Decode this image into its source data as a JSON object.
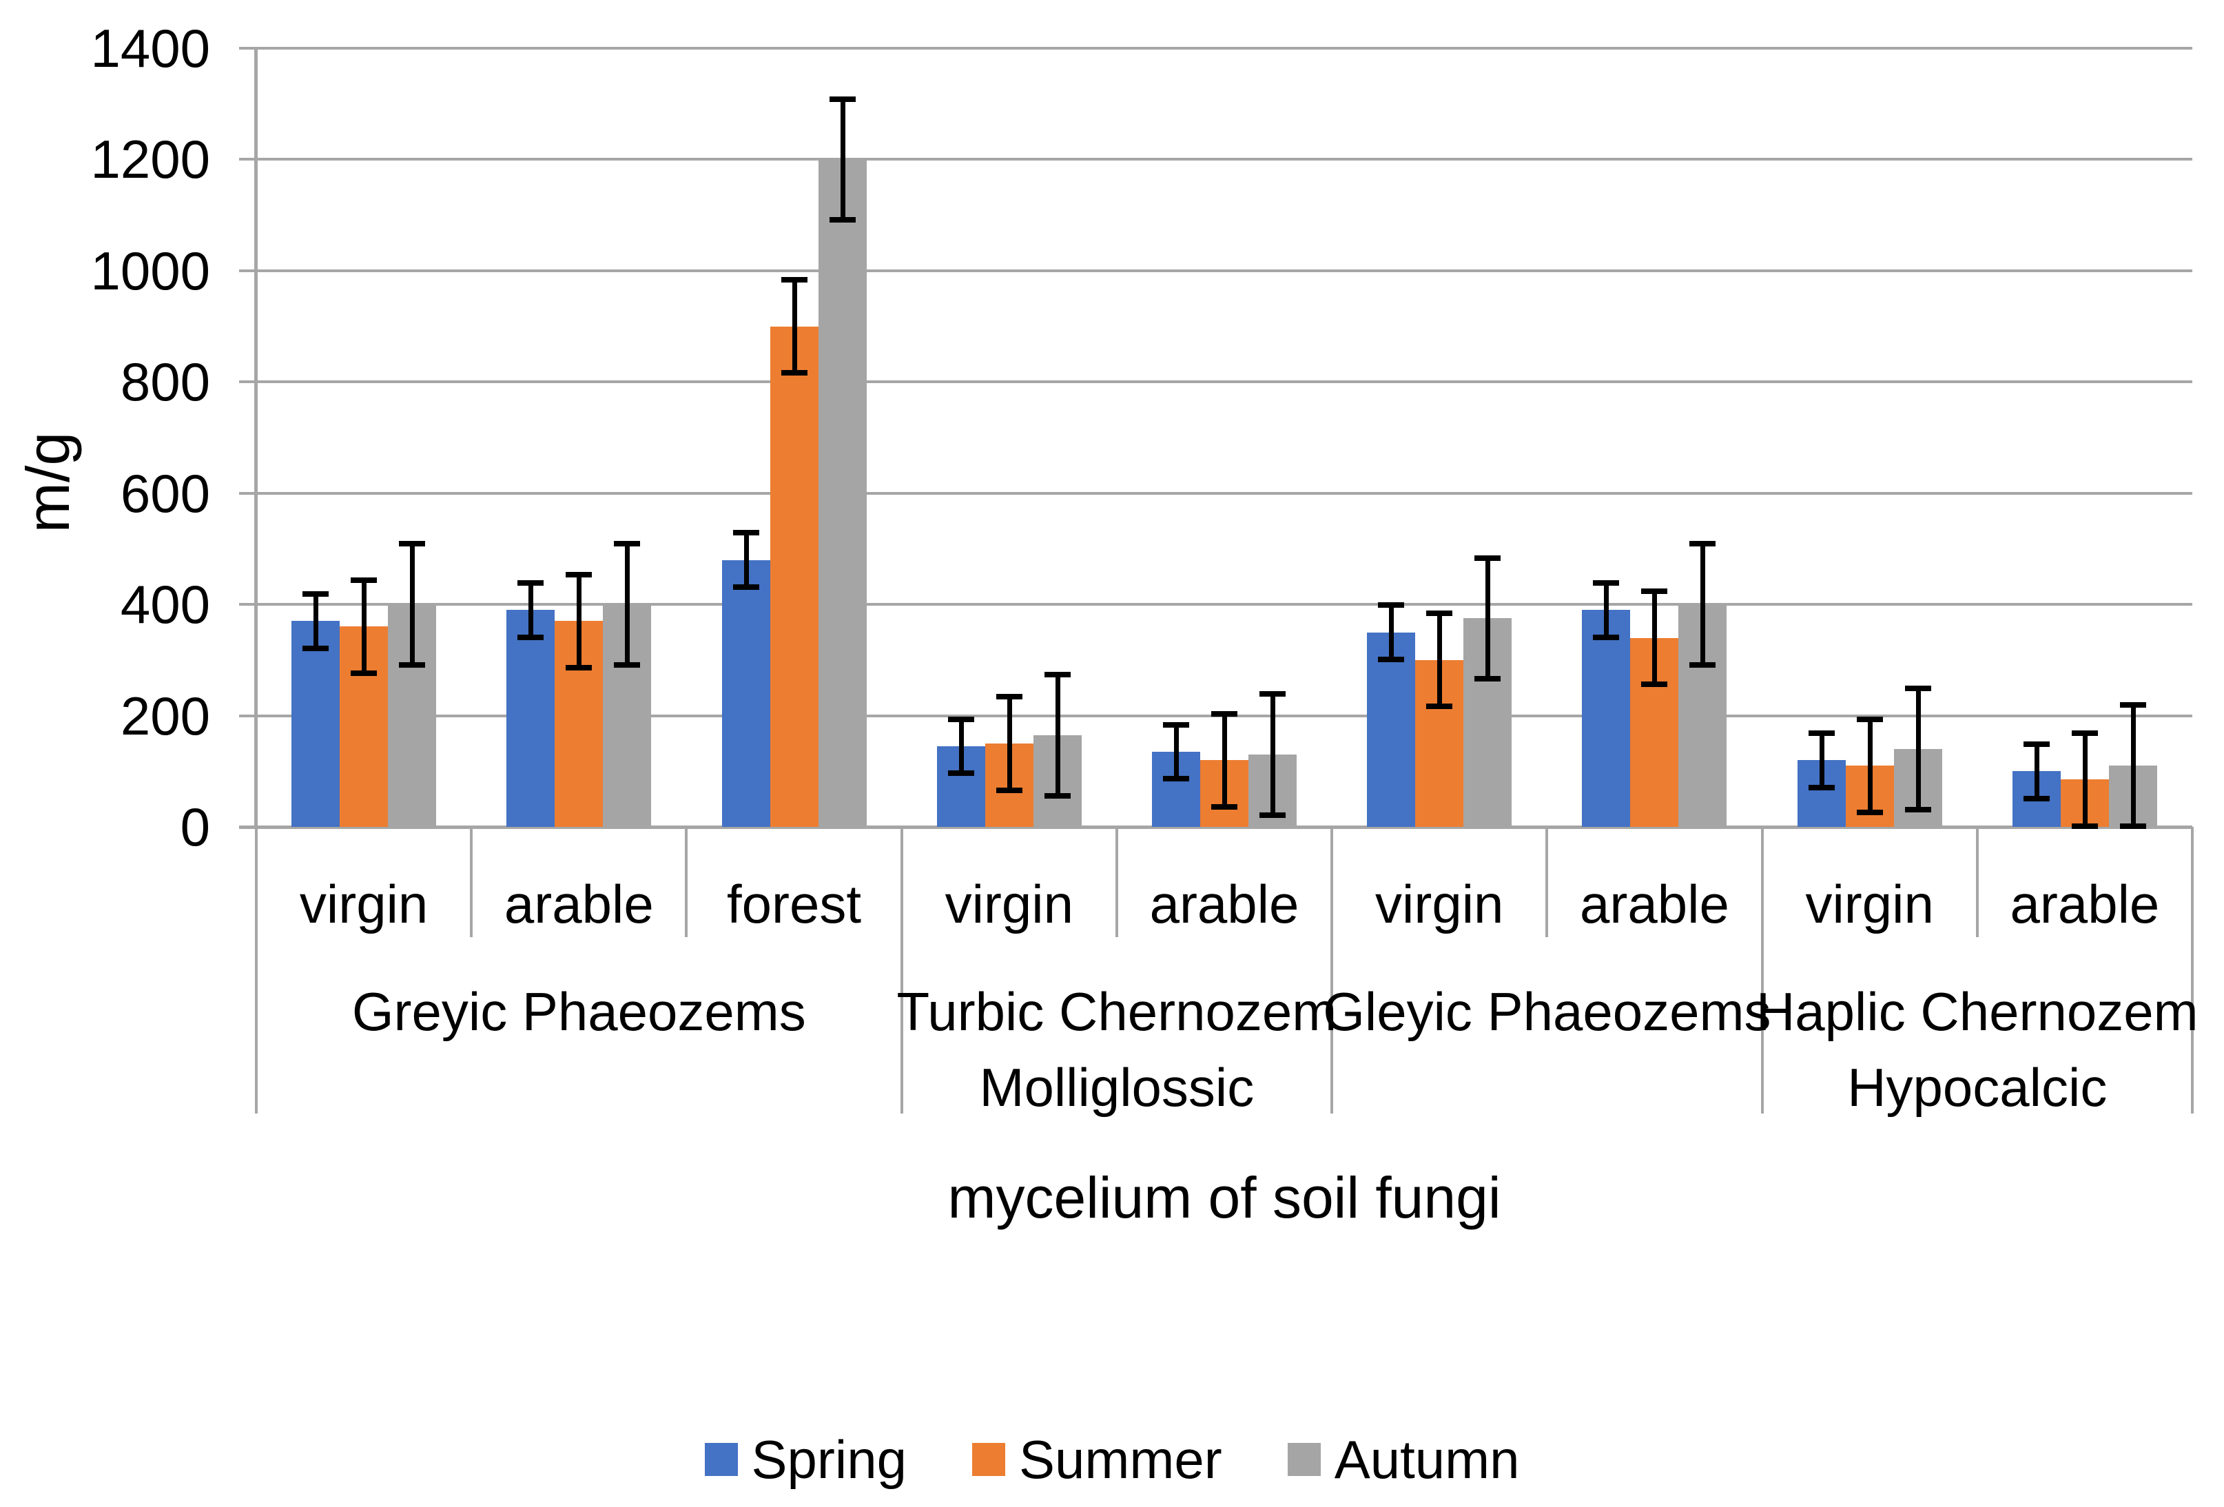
{
  "chart_data": {
    "type": "bar",
    "title": "",
    "ylabel": "m/g",
    "xlabel": "mycelium of soil fungi",
    "ylim": [
      0,
      1400
    ],
    "yticks": [
      0,
      200,
      400,
      600,
      800,
      1000,
      1200,
      1400
    ],
    "grid": true,
    "legend_position": "bottom",
    "categories": [
      "virgin",
      "arable",
      "forest",
      "virgin",
      "arable",
      "virgin",
      "arable",
      "virgin",
      "arable"
    ],
    "groups": [
      {
        "label": "Greyic Phaeozems",
        "label_lines": [
          "Greyic Phaeozems"
        ],
        "categories": [
          "virgin",
          "arable",
          "forest"
        ]
      },
      {
        "label": "Turbic Chernozem Molliglossic",
        "label_lines": [
          "Turbic Chernozem",
          "Molliglossic"
        ],
        "categories": [
          "virgin",
          "arable"
        ]
      },
      {
        "label": "Gleyic Phaeozems",
        "label_lines": [
          "Gleyic Phaeozems"
        ],
        "categories": [
          "virgin",
          "arable"
        ]
      },
      {
        "label": "Haplic Chernozem Hypocalcic",
        "label_lines": [
          "Haplic Chernozem",
          "Hypocalcic"
        ],
        "categories": [
          "virgin",
          "arable"
        ]
      }
    ],
    "series": [
      {
        "name": "Spring",
        "color": "#4472C4",
        "values": [
          370,
          390,
          480,
          145,
          135,
          350,
          390,
          120,
          100
        ],
        "errors": [
          50,
          50,
          50,
          50,
          50,
          50,
          50,
          50,
          50
        ]
      },
      {
        "name": "Summer",
        "color": "#ED7D31",
        "values": [
          360,
          370,
          900,
          150,
          120,
          300,
          340,
          110,
          85
        ],
        "errors": [
          85,
          85,
          85,
          85,
          85,
          85,
          85,
          85,
          85
        ]
      },
      {
        "name": "Autumn",
        "color": "#A5A5A5",
        "values": [
          400,
          400,
          1200,
          165,
          130,
          375,
          400,
          140,
          110
        ],
        "errors": [
          110,
          110,
          110,
          110,
          110,
          110,
          110,
          110,
          110
        ]
      }
    ],
    "error_bar_color": "#000000",
    "gridline_color": "#A6A6A6",
    "axis_line_color": "#A6A6A6",
    "text_color": "#000000",
    "background": "#FFFFFF"
  }
}
